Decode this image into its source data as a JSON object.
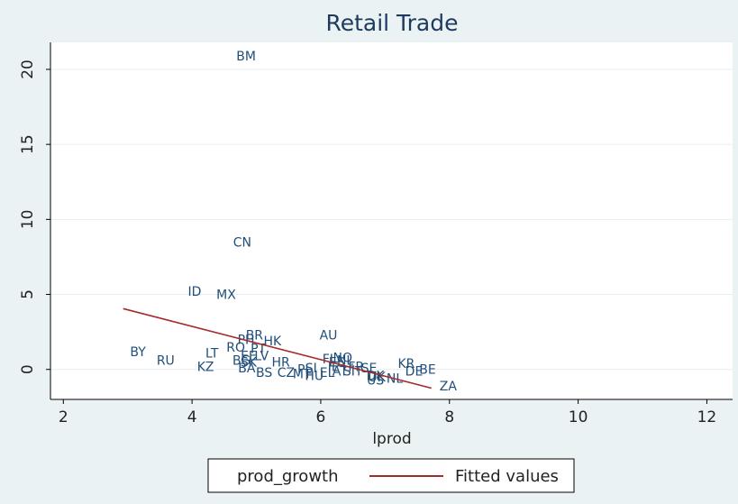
{
  "chart_data": {
    "type": "scatter",
    "title": "Retail Trade",
    "xlabel": "lprod",
    "ylabel": "",
    "xlim": [
      1.8,
      12.4
    ],
    "ylim": [
      -2.0,
      21.8
    ],
    "xticks": [
      "2",
      "4",
      "6",
      "8",
      "10",
      "12"
    ],
    "yticks": [
      "0",
      "5",
      "10",
      "15",
      "20"
    ],
    "grid": "horizontal",
    "legend_position": "bottom",
    "series": [
      {
        "name": "prod_growth",
        "type": "scatter-labels",
        "color": "#1f4e79",
        "points": [
          {
            "label": "BM",
            "x": 4.84,
            "y": 20.9
          },
          {
            "label": "CN",
            "x": 4.78,
            "y": 8.5
          },
          {
            "label": "ID",
            "x": 4.04,
            "y": 5.2
          },
          {
            "label": "MX",
            "x": 4.53,
            "y": 5.0
          },
          {
            "label": "AU",
            "x": 6.12,
            "y": 2.3
          },
          {
            "label": "BR",
            "x": 4.97,
            "y": 2.3
          },
          {
            "label": "PH",
            "x": 4.84,
            "y": 2.0
          },
          {
            "label": "HK",
            "x": 5.25,
            "y": 1.9
          },
          {
            "label": "RO",
            "x": 4.68,
            "y": 1.5
          },
          {
            "label": "PT",
            "x": 5.03,
            "y": 1.4
          },
          {
            "label": "BY",
            "x": 3.16,
            "y": 1.2
          },
          {
            "label": "LT",
            "x": 4.31,
            "y": 1.1
          },
          {
            "label": "EE",
            "x": 4.88,
            "y": 0.9
          },
          {
            "label": "LV",
            "x": 5.08,
            "y": 0.9
          },
          {
            "label": "RU",
            "x": 3.59,
            "y": 0.6
          },
          {
            "label": "BG",
            "x": 4.77,
            "y": 0.6
          },
          {
            "label": "SK",
            "x": 4.88,
            "y": 0.5
          },
          {
            "label": "HR",
            "x": 5.38,
            "y": 0.5
          },
          {
            "label": "NO",
            "x": 6.34,
            "y": 0.8
          },
          {
            "label": "FI",
            "x": 6.11,
            "y": 0.7
          },
          {
            "label": "NL",
            "x": 6.38,
            "y": 0.6
          },
          {
            "label": "ES",
            "x": 6.25,
            "y": 0.5
          },
          {
            "label": "KR",
            "x": 7.33,
            "y": 0.4
          },
          {
            "label": "FR",
            "x": 6.55,
            "y": 0.2
          },
          {
            "label": "SI",
            "x": 5.85,
            "y": 0.1
          },
          {
            "label": "IE",
            "x": 6.2,
            "y": 0.2
          },
          {
            "label": "KZ",
            "x": 4.21,
            "y": 0.2
          },
          {
            "label": "BA",
            "x": 4.85,
            "y": 0.1
          },
          {
            "label": "PL",
            "x": 5.75,
            "y": 0.0
          },
          {
            "label": "SE",
            "x": 6.75,
            "y": 0.1
          },
          {
            "label": "BE",
            "x": 7.66,
            "y": 0.0
          },
          {
            "label": "AT",
            "x": 6.3,
            "y": -0.1
          },
          {
            "label": "SIT",
            "x": 6.5,
            "y": -0.1
          },
          {
            "label": "DE",
            "x": 7.45,
            "y": -0.1
          },
          {
            "label": "CZ",
            "x": 5.46,
            "y": -0.2
          },
          {
            "label": "BS",
            "x": 5.12,
            "y": -0.2
          },
          {
            "label": "MT",
            "x": 5.71,
            "y": -0.3
          },
          {
            "label": "HU",
            "x": 5.9,
            "y": -0.4
          },
          {
            "label": "EL",
            "x": 6.1,
            "y": -0.2
          },
          {
            "label": "DK",
            "x": 6.85,
            "y": -0.4
          },
          {
            "label": "US",
            "x": 6.85,
            "y": -0.7
          },
          {
            "label": "UK",
            "x": 6.87,
            "y": -0.5
          },
          {
            "label": "NL",
            "x": 7.15,
            "y": -0.6
          },
          {
            "label": "ZA",
            "x": 7.98,
            "y": -1.1
          }
        ]
      },
      {
        "name": "Fitted values",
        "type": "line",
        "color": "#a52a2a",
        "points": [
          {
            "x": 2.93,
            "y": 4.05
          },
          {
            "x": 7.72,
            "y": -1.25
          }
        ]
      }
    ]
  }
}
